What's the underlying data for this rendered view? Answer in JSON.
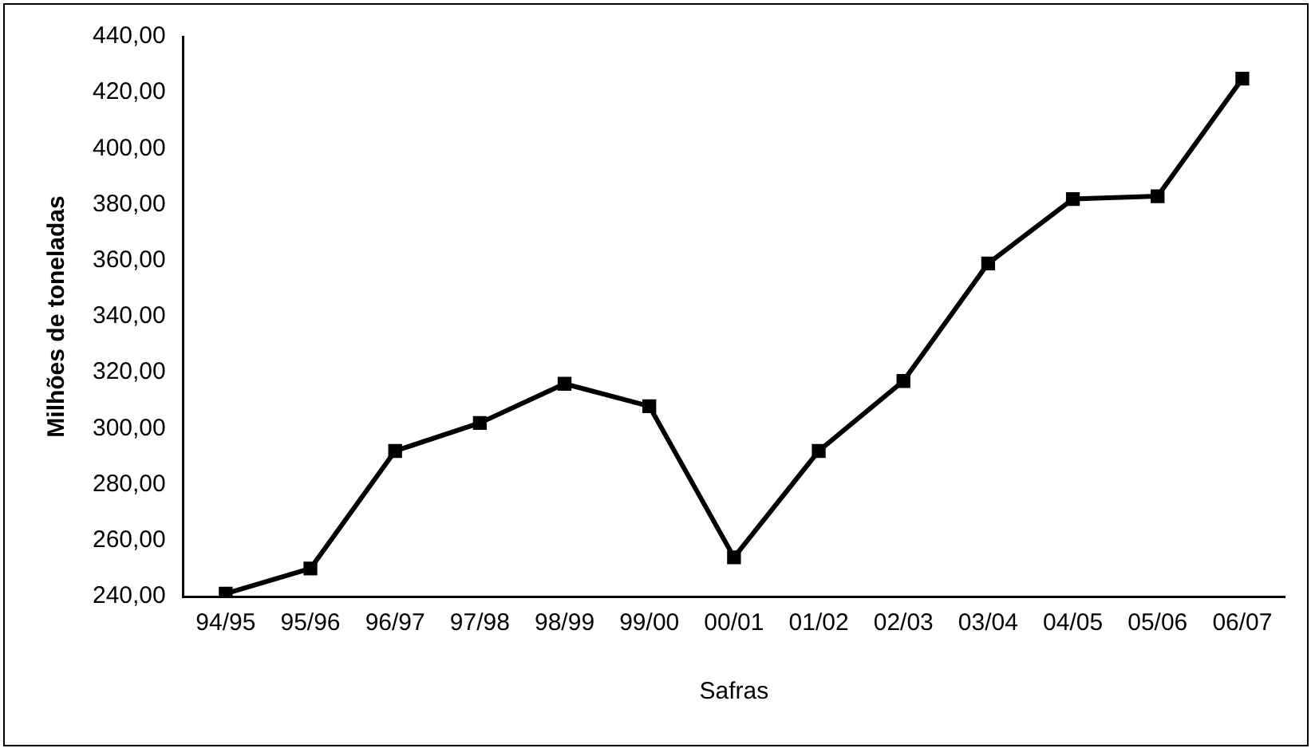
{
  "chart_data": {
    "type": "line",
    "xlabel": "Safras",
    "ylabel": "Milhões de toneladas",
    "categories": [
      "94/95",
      "95/96",
      "96/97",
      "97/98",
      "98/99",
      "99/00",
      "00/01",
      "01/02",
      "02/03",
      "03/04",
      "04/05",
      "05/06",
      "06/07"
    ],
    "series": [
      {
        "color": "#000000",
        "values": [
          241,
          250,
          292,
          302,
          316,
          308,
          254,
          292,
          317,
          359,
          382,
          383,
          425
        ]
      }
    ],
    "ylim": [
      240,
      440
    ],
    "yticks": [
      {
        "value": 240,
        "label": "240,00"
      },
      {
        "value": 260,
        "label": "260,00"
      },
      {
        "value": 280,
        "label": "280,00"
      },
      {
        "value": 300,
        "label": "300,00"
      },
      {
        "value": 320,
        "label": "320,00"
      },
      {
        "value": 340,
        "label": "340,00"
      },
      {
        "value": 360,
        "label": "360,00"
      },
      {
        "value": 380,
        "label": "380,00"
      },
      {
        "value": 400,
        "label": "400,00"
      },
      {
        "value": 420,
        "label": "420,00"
      },
      {
        "value": 440,
        "label": "440,00"
      }
    ],
    "grid": false,
    "legend": false,
    "marker": "square",
    "line_style": "solid"
  }
}
